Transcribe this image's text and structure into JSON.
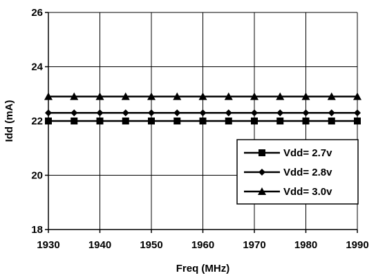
{
  "chart_data": {
    "type": "line",
    "xlabel": "Freq (MHz)",
    "ylabel": "Idd (mA)",
    "xlim": [
      1930,
      1990
    ],
    "ylim": [
      18,
      26
    ],
    "x_ticks": [
      1930,
      1940,
      1950,
      1960,
      1970,
      1980,
      1990
    ],
    "y_ticks": [
      18,
      20,
      22,
      24,
      26
    ],
    "grid": true,
    "legend_position": "bottom-right",
    "x": [
      1930,
      1935,
      1940,
      1945,
      1950,
      1955,
      1960,
      1965,
      1970,
      1975,
      1980,
      1985,
      1990
    ],
    "series": [
      {
        "name": "Vdd= 2.7v",
        "marker": "square",
        "color": "#000000",
        "values": [
          22.0,
          22.0,
          22.0,
          22.0,
          22.0,
          22.0,
          22.0,
          22.0,
          22.0,
          22.0,
          22.0,
          22.0,
          22.0
        ]
      },
      {
        "name": "Vdd= 2.8v",
        "marker": "diamond",
        "color": "#000000",
        "values": [
          22.3,
          22.3,
          22.3,
          22.3,
          22.3,
          22.3,
          22.3,
          22.3,
          22.3,
          22.3,
          22.3,
          22.3,
          22.3
        ]
      },
      {
        "name": "Vdd= 3.0v",
        "marker": "triangle",
        "color": "#000000",
        "values": [
          22.9,
          22.9,
          22.9,
          22.9,
          22.9,
          22.9,
          22.9,
          22.9,
          22.9,
          22.9,
          22.9,
          22.9,
          22.9
        ]
      }
    ]
  }
}
